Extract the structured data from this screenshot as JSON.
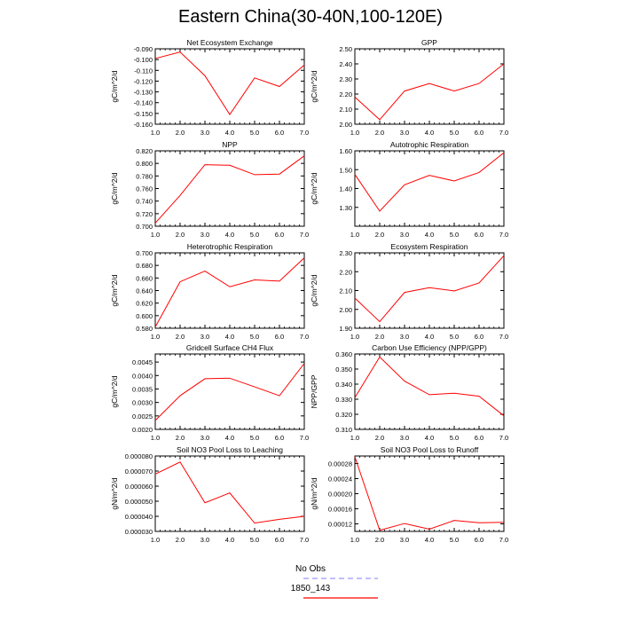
{
  "title": "Eastern China(30-40N,100-120E)",
  "legend": {
    "entries": [
      {
        "label": "No Obs",
        "color": "#9999ff",
        "dashed": true
      },
      {
        "label": "1850_143",
        "color": "#ff0000",
        "dashed": false
      }
    ]
  },
  "chart_data": [
    {
      "type": "line",
      "title": "Net Ecosystem Exchange",
      "ylabel": "gC/m^2/d",
      "x": [
        1,
        2,
        3,
        4,
        5,
        6,
        7
      ],
      "xlim": [
        1,
        7
      ],
      "xticks": [
        "1.0",
        "2.0",
        "3.0",
        "4.0",
        "5.0",
        "6.0",
        "7.0"
      ],
      "ylim": [
        -0.16,
        -0.09
      ],
      "yticks": [
        -0.16,
        -0.15,
        -0.14,
        -0.13,
        -0.12,
        -0.11,
        -0.1,
        -0.09
      ],
      "ytick_labels": [
        "-0.160",
        "-0.150",
        "-0.140",
        "-0.130",
        "-0.120",
        "-0.110",
        "-0.100",
        "-0.090"
      ],
      "series": [
        {
          "name": "1850_143",
          "values": [
            -0.099,
            -0.093,
            -0.115,
            -0.151,
            -0.117,
            -0.125,
            -0.105
          ]
        }
      ]
    },
    {
      "type": "line",
      "title": "GPP",
      "ylabel": "gC/m^2/d",
      "x": [
        1,
        2,
        3,
        4,
        5,
        6,
        7
      ],
      "xlim": [
        1,
        7
      ],
      "xticks": [
        "1.0",
        "2.0",
        "3.0",
        "4.0",
        "5.0",
        "6.0",
        "7.0"
      ],
      "ylim": [
        2.0,
        2.5
      ],
      "yticks": [
        2.0,
        2.1,
        2.2,
        2.3,
        2.4,
        2.5
      ],
      "ytick_labels": [
        "2.00",
        "2.10",
        "2.20",
        "2.30",
        "2.40",
        "2.50"
      ],
      "series": [
        {
          "name": "1850_143",
          "values": [
            2.18,
            2.03,
            2.22,
            2.27,
            2.22,
            2.27,
            2.4
          ]
        }
      ]
    },
    {
      "type": "line",
      "title": "NPP",
      "ylabel": "gC/m^2/d",
      "x": [
        1,
        2,
        3,
        4,
        5,
        6,
        7
      ],
      "xlim": [
        1,
        7
      ],
      "xticks": [
        "1.0",
        "2.0",
        "3.0",
        "4.0",
        "5.0",
        "6.0",
        "7.0"
      ],
      "ylim": [
        0.7,
        0.82
      ],
      "yticks": [
        0.7,
        0.72,
        0.74,
        0.76,
        0.78,
        0.8,
        0.82
      ],
      "ytick_labels": [
        "0.700",
        "0.720",
        "0.740",
        "0.760",
        "0.780",
        "0.800",
        "0.820"
      ],
      "series": [
        {
          "name": "1850_143",
          "values": [
            0.705,
            0.749,
            0.798,
            0.797,
            0.782,
            0.783,
            0.812
          ]
        }
      ]
    },
    {
      "type": "line",
      "title": "Autotrophic Respiration",
      "ylabel": "gC/m^2/d",
      "x": [
        1,
        2,
        3,
        4,
        5,
        6,
        7
      ],
      "xlim": [
        1,
        7
      ],
      "xticks": [
        "1.0",
        "2.0",
        "3.0",
        "4.0",
        "5.0",
        "6.0",
        "7.0"
      ],
      "ylim": [
        1.2,
        1.6
      ],
      "yticks": [
        1.3,
        1.4,
        1.5,
        1.6
      ],
      "ytick_labels": [
        "1.30",
        "1.40",
        "1.50",
        "1.60"
      ],
      "series": [
        {
          "name": "1850_143",
          "values": [
            1.475,
            1.28,
            1.42,
            1.47,
            1.44,
            1.485,
            1.59
          ]
        }
      ]
    },
    {
      "type": "line",
      "title": "Heterotrophic Respiration",
      "ylabel": "gC/m^2/d",
      "x": [
        1,
        2,
        3,
        4,
        5,
        6,
        7
      ],
      "xlim": [
        1,
        7
      ],
      "xticks": [
        "1.0",
        "2.0",
        "3.0",
        "4.0",
        "5.0",
        "6.0",
        "7.0"
      ],
      "ylim": [
        0.58,
        0.7
      ],
      "yticks": [
        0.58,
        0.6,
        0.62,
        0.64,
        0.66,
        0.68,
        0.7
      ],
      "ytick_labels": [
        "0.580",
        "0.600",
        "0.620",
        "0.640",
        "0.660",
        "0.680",
        "0.700"
      ],
      "series": [
        {
          "name": "1850_143",
          "values": [
            0.582,
            0.654,
            0.671,
            0.646,
            0.657,
            0.655,
            0.692
          ]
        }
      ]
    },
    {
      "type": "line",
      "title": "Ecosystem Respiration",
      "ylabel": "gC/m^2/d",
      "x": [
        1,
        2,
        3,
        4,
        5,
        6,
        7
      ],
      "xlim": [
        1,
        7
      ],
      "xticks": [
        "1.0",
        "2.0",
        "3.0",
        "4.0",
        "5.0",
        "6.0",
        "7.0"
      ],
      "ylim": [
        1.9,
        2.3
      ],
      "yticks": [
        1.9,
        2.0,
        2.1,
        2.2,
        2.3
      ],
      "ytick_labels": [
        "1.90",
        "2.00",
        "2.10",
        "2.20",
        "2.30"
      ],
      "series": [
        {
          "name": "1850_143",
          "values": [
            2.06,
            1.935,
            2.09,
            2.115,
            2.098,
            2.14,
            2.285
          ]
        }
      ]
    },
    {
      "type": "line",
      "title": "Gridcell Surface CH4 Flux",
      "ylabel": "gC/m^2/d",
      "x": [
        1,
        2,
        3,
        4,
        5,
        6,
        7
      ],
      "xlim": [
        1,
        7
      ],
      "xticks": [
        "1.0",
        "2.0",
        "3.0",
        "4.0",
        "5.0",
        "6.0",
        "7.0"
      ],
      "ylim": [
        0.002,
        0.0048
      ],
      "yticks": [
        0.002,
        0.0025,
        0.003,
        0.0035,
        0.004,
        0.0045
      ],
      "ytick_labels": [
        "0.0020",
        "0.0025",
        "0.0030",
        "0.0035",
        "0.0040",
        "0.0045"
      ],
      "series": [
        {
          "name": "1850_143",
          "values": [
            0.00233,
            0.00325,
            0.00388,
            0.0039,
            0.00358,
            0.00325,
            0.00445
          ]
        }
      ]
    },
    {
      "type": "line",
      "title": "Carbon Use Efficiency (NPP/GPP)",
      "ylabel": "NPP/GPP",
      "x": [
        1,
        2,
        3,
        4,
        5,
        6,
        7
      ],
      "xlim": [
        1,
        7
      ],
      "xticks": [
        "1.0",
        "2.0",
        "3.0",
        "4.0",
        "5.0",
        "6.0",
        "7.0"
      ],
      "ylim": [
        0.31,
        0.36
      ],
      "yticks": [
        0.31,
        0.32,
        0.33,
        0.34,
        0.35,
        0.36
      ],
      "ytick_labels": [
        "0.310",
        "0.320",
        "0.330",
        "0.340",
        "0.350",
        "0.360"
      ],
      "series": [
        {
          "name": "1850_143",
          "values": [
            0.331,
            0.358,
            0.342,
            0.333,
            0.334,
            0.332,
            0.319
          ]
        }
      ]
    },
    {
      "type": "line",
      "title": "Soil NO3 Pool Loss to Leaching",
      "ylabel": "gN/m^2/d",
      "x": [
        1,
        2,
        3,
        4,
        5,
        6,
        7
      ],
      "xlim": [
        1,
        7
      ],
      "xticks": [
        "1.0",
        "2.0",
        "3.0",
        "4.0",
        "5.0",
        "6.0",
        "7.0"
      ],
      "ylim": [
        3e-05,
        8e-05
      ],
      "yticks": [
        3e-05,
        4e-05,
        5e-05,
        6e-05,
        7e-05,
        8e-05
      ],
      "ytick_labels": [
        "0.000030",
        "0.000040",
        "0.000050",
        "0.000060",
        "0.000070",
        "0.000080"
      ],
      "series": [
        {
          "name": "1850_143",
          "values": [
            6.8e-05,
            7.6e-05,
            4.9e-05,
            5.55e-05,
            3.55e-05,
            3.8e-05,
            4e-05
          ]
        }
      ]
    },
    {
      "type": "line",
      "title": "Soil NO3 Pool Loss to Runoff",
      "ylabel": "gN/m^2/d",
      "x": [
        1,
        2,
        3,
        4,
        5,
        6,
        7
      ],
      "xlim": [
        1,
        7
      ],
      "xticks": [
        "1.0",
        "2.0",
        "3.0",
        "4.0",
        "5.0",
        "6.0",
        "7.0"
      ],
      "ylim": [
        0.0001,
        0.0003
      ],
      "yticks": [
        0.00012,
        0.00016,
        0.0002,
        0.00024,
        0.00028
      ],
      "ytick_labels": [
        "0.00012",
        "0.00016",
        "0.00020",
        "0.00024",
        "0.00028"
      ],
      "series": [
        {
          "name": "1850_143",
          "values": [
            0.000298,
            0.000103,
            0.000121,
            0.000106,
            0.000129,
            0.000123,
            0.000124
          ]
        }
      ]
    }
  ]
}
